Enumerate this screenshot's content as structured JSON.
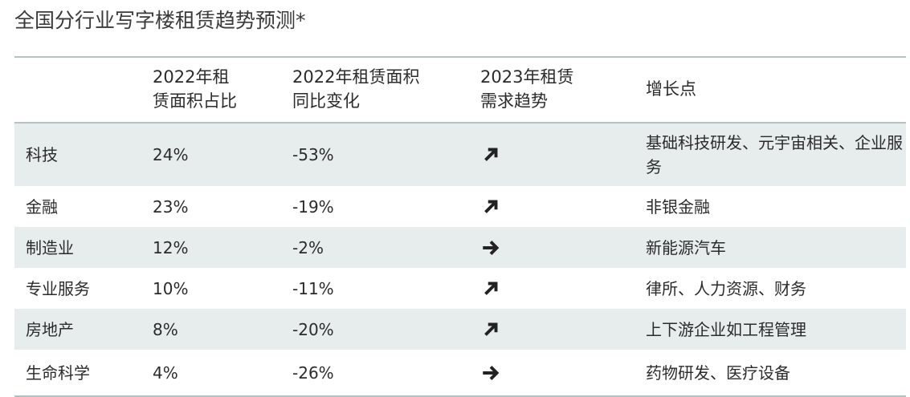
{
  "title": "全国分行业写字楼租赁趋势预测*",
  "headers": {
    "industry": "",
    "share_line1": "2022年租",
    "share_line2": "赁面积占比",
    "change_line1": "2022年租赁面积",
    "change_line2": "同比变化",
    "trend_line1": "2023年租赁",
    "trend_line2": "需求趋势",
    "growth": "增长点"
  },
  "rows": [
    {
      "industry": "科技",
      "share": "24%",
      "change": "-53%",
      "trend": "arrow-up-right-icon",
      "growth": "基础科技研发、元宇宙相关、企业服务"
    },
    {
      "industry": "金融",
      "share": "23%",
      "change": "-19%",
      "trend": "arrow-up-right-icon",
      "growth": "非银金融"
    },
    {
      "industry": "制造业",
      "share": "12%",
      "change": "-2%",
      "trend": "arrow-right-icon",
      "growth": "新能源汽车"
    },
    {
      "industry": "专业服务",
      "share": "10%",
      "change": "-11%",
      "trend": "arrow-up-right-icon",
      "growth": "律所、人力资源、财务"
    },
    {
      "industry": "房地产",
      "share": "8%",
      "change": "-20%",
      "trend": "arrow-up-right-icon",
      "growth": "上下游企业如工程管理"
    },
    {
      "industry": "生命科学",
      "share": "4%",
      "change": "-26%",
      "trend": "arrow-right-icon",
      "growth": "药物研发、医疗设备"
    }
  ],
  "colors": {
    "row_shade": "#e7edec",
    "rule": "#b5c2c2",
    "text": "#2b2b2b"
  }
}
